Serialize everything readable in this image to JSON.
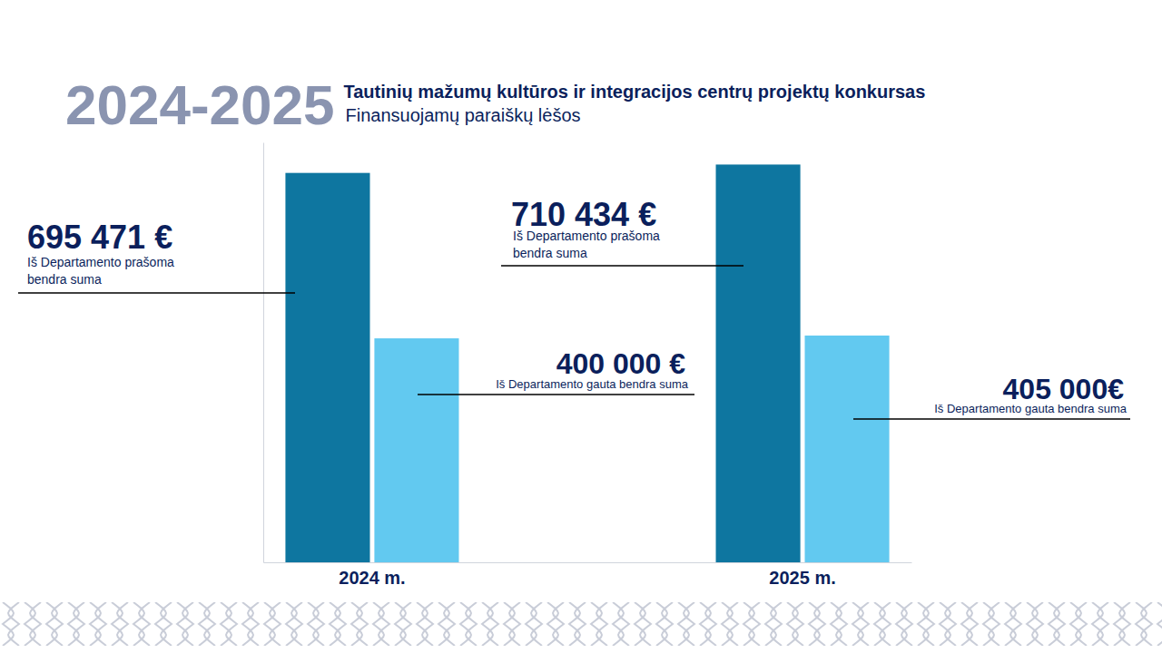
{
  "chart_data": {
    "type": "bar",
    "title": "Tautinių mažumų kultūros ir integracijos centrų projektų konkursas",
    "subtitle": "Finansuojamų paraiškų lėšos",
    "annotations": [
      "2024-2025"
    ],
    "categories": [
      "2024 m.",
      "2025 m."
    ],
    "series": [
      {
        "name": "Iš Departamento prašoma bendra suma",
        "color": "#0e76a0",
        "values": [
          695471,
          710434
        ],
        "value_labels": [
          "695 471 €",
          "710 434 €"
        ]
      },
      {
        "name": "Iš Departamento gauta bendra suma",
        "color": "#62c9f0",
        "values": [
          400000,
          405000
        ],
        "value_labels": [
          "400 000 €",
          "405 000€"
        ]
      }
    ],
    "ylim": [
      0,
      750000
    ],
    "yticks": [],
    "tick_labels": "x",
    "data_labels": true,
    "grid": false
  }
}
